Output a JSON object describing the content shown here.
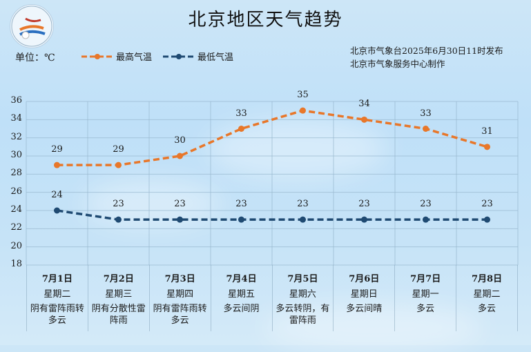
{
  "header": {
    "title": "北京地区天气趋势",
    "unit_label": "单位：℃",
    "issuer_line1": "北京市气象台2025年6月30日11时发布",
    "issuer_line2": "北京市气象服务中心制作",
    "logo": "meteorological-service-logo"
  },
  "legend": {
    "high": "最高气温",
    "low": "最低气温"
  },
  "colors": {
    "high": "#e8772a",
    "low": "#1f4a72",
    "grid": "#98b8cf"
  },
  "days": [
    {
      "date": "7月1日",
      "weekday": "星期二",
      "condition": "阴有雷阵雨转多云"
    },
    {
      "date": "7月2日",
      "weekday": "星期三",
      "condition": "阴有分散性雷阵雨"
    },
    {
      "date": "7月3日",
      "weekday": "星期四",
      "condition": "阴有雷阵雨转多云"
    },
    {
      "date": "7月4日",
      "weekday": "星期五",
      "condition": "多云间阴"
    },
    {
      "date": "7月5日",
      "weekday": "星期六",
      "condition": "多云转阴，有雷阵雨"
    },
    {
      "date": "7月6日",
      "weekday": "星期日",
      "condition": "多云间晴"
    },
    {
      "date": "7月7日",
      "weekday": "星期一",
      "condition": "多云"
    },
    {
      "date": "7月8日",
      "weekday": "星期二",
      "condition": "多云"
    }
  ],
  "chart_data": {
    "type": "line",
    "title": "北京地区天气趋势",
    "xlabel": "",
    "ylabel": "单位：℃",
    "categories": [
      "7月1日",
      "7月2日",
      "7月3日",
      "7月4日",
      "7月5日",
      "7月6日",
      "7月7日",
      "7月8日"
    ],
    "series": [
      {
        "name": "最高气温",
        "values": [
          29,
          29,
          30,
          33,
          35,
          34,
          33,
          31
        ],
        "color": "#e8772a",
        "style": "dashed"
      },
      {
        "name": "最低气温",
        "values": [
          24,
          23,
          23,
          23,
          23,
          23,
          23,
          23
        ],
        "color": "#1f4a72",
        "style": "dashed"
      }
    ],
    "yticks": [
      18,
      20,
      22,
      24,
      26,
      28,
      30,
      32,
      34,
      36
    ],
    "ylim": [
      18,
      36
    ],
    "grid": true,
    "legend_position": "top-left"
  }
}
